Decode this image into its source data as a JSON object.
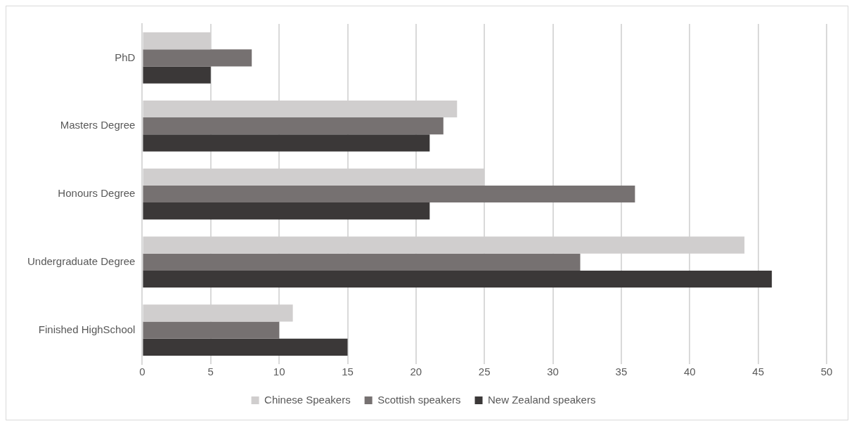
{
  "chart_data": {
    "type": "bar",
    "orientation": "horizontal",
    "categories": [
      "PhD",
      "Masters Degree",
      "Honours Degree",
      "Undergraduate Degree",
      "Finished HighSchool"
    ],
    "series": [
      {
        "name": "Chinese Speakers",
        "color": "#d0cece",
        "values": [
          5,
          23,
          25,
          44,
          11
        ]
      },
      {
        "name": "Scottish speakers",
        "color": "#767171",
        "values": [
          8,
          22,
          36,
          32,
          10
        ]
      },
      {
        "name": "New Zealand speakers",
        "color": "#3b3838",
        "values": [
          5,
          21,
          21,
          46,
          15
        ]
      }
    ],
    "xlim": [
      0,
      50
    ],
    "xticks": [
      0,
      5,
      10,
      15,
      20,
      25,
      30,
      35,
      40,
      45,
      50
    ],
    "grid": "x",
    "legend": "bottom"
  }
}
